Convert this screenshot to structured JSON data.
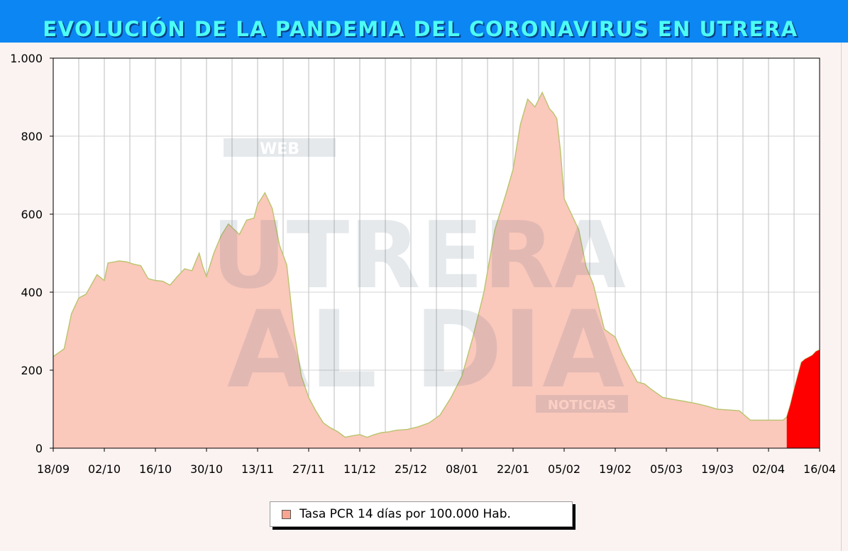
{
  "banner": {
    "title": "EVOLUCIÓN DE LA PANDEMIA DEL CORONAVIRUS EN UTRERA",
    "background": "#0c86f3",
    "text_color": "#4dfcf5"
  },
  "watermark": {
    "lines": [
      "WEB",
      "UTRERA",
      "AL DIA",
      "NOTICIAS"
    ]
  },
  "chart_data": {
    "type": "area",
    "title": "EVOLUCIÓN DE LA PANDEMIA DEL CORONAVIRUS EN UTRERA",
    "xlabel": "",
    "ylabel": "",
    "ylim": [
      0,
      1000
    ],
    "grid": true,
    "legend_position": "bottom",
    "y_ticks": [
      0,
      200,
      400,
      600,
      800,
      1000
    ],
    "y_tick_labels": [
      "0",
      "200",
      "400",
      "600",
      "800",
      "1.000"
    ],
    "x_ticks": [
      "18/09",
      "02/10",
      "16/10",
      "30/10",
      "13/11",
      "27/11",
      "11/12",
      "25/12",
      "08/01",
      "22/01",
      "05/02",
      "19/02",
      "05/03",
      "19/03",
      "02/04",
      "16/04"
    ],
    "x_start": "2020-09-18",
    "x_end": "2021-04-16",
    "colors": {
      "fill": "#fbc8bc",
      "line": "#b9c46c",
      "highlight": "#ff0000"
    },
    "series": [
      {
        "name": "Tasa PCR 14 días por 100.000 Hab.",
        "x": [
          "2020-09-18",
          "2020-09-21",
          "2020-09-23",
          "2020-09-25",
          "2020-09-27",
          "2020-09-30",
          "2020-10-02",
          "2020-10-03",
          "2020-10-05",
          "2020-10-06",
          "2020-10-08",
          "2020-10-10",
          "2020-10-12",
          "2020-10-14",
          "2020-10-16",
          "2020-10-18",
          "2020-10-20",
          "2020-10-22",
          "2020-10-24",
          "2020-10-26",
          "2020-10-28",
          "2020-10-29",
          "2020-10-30",
          "2020-11-01",
          "2020-11-03",
          "2020-11-05",
          "2020-11-08",
          "2020-11-10",
          "2020-11-12",
          "2020-11-13",
          "2020-11-15",
          "2020-11-17",
          "2020-11-19",
          "2020-11-21",
          "2020-11-23",
          "2020-11-25",
          "2020-11-27",
          "2020-11-29",
          "2020-12-01",
          "2020-12-03",
          "2020-12-05",
          "2020-12-07",
          "2020-12-09",
          "2020-12-11",
          "2020-12-13",
          "2020-12-15",
          "2020-12-17",
          "2020-12-19",
          "2020-12-21",
          "2020-12-24",
          "2020-12-27",
          "2020-12-30",
          "2021-01-02",
          "2021-01-05",
          "2021-01-08",
          "2021-01-11",
          "2021-01-14",
          "2021-01-17",
          "2021-01-20",
          "2021-01-22",
          "2021-01-24",
          "2021-01-26",
          "2021-01-28",
          "2021-01-30",
          "2021-02-01",
          "2021-02-02",
          "2021-02-03",
          "2021-02-04",
          "2021-02-05",
          "2021-02-07",
          "2021-02-09",
          "2021-02-11",
          "2021-02-13",
          "2021-02-16",
          "2021-02-19",
          "2021-02-21",
          "2021-02-23",
          "2021-02-25",
          "2021-02-27",
          "2021-03-01",
          "2021-03-04",
          "2021-03-07",
          "2021-03-10",
          "2021-03-13",
          "2021-03-16",
          "2021-03-19",
          "2021-03-22",
          "2021-03-25",
          "2021-03-28",
          "2021-03-31",
          "2021-04-03",
          "2021-04-06",
          "2021-04-07",
          "2021-04-08",
          "2021-04-09",
          "2021-04-10",
          "2021-04-11",
          "2021-04-12",
          "2021-04-13",
          "2021-04-14",
          "2021-04-15",
          "2021-04-16"
        ],
        "values": [
          235,
          255,
          345,
          385,
          395,
          445,
          430,
          475,
          478,
          480,
          478,
          472,
          468,
          435,
          430,
          428,
          418,
          440,
          460,
          455,
          500,
          465,
          440,
          500,
          545,
          575,
          548,
          585,
          590,
          625,
          655,
          615,
          520,
          470,
          300,
          185,
          130,
          95,
          65,
          52,
          42,
          28,
          32,
          35,
          28,
          35,
          40,
          42,
          46,
          48,
          55,
          65,
          85,
          130,
          185,
          285,
          400,
          560,
          650,
          715,
          830,
          895,
          875,
          912,
          870,
          860,
          845,
          760,
          640,
          600,
          560,
          465,
          420,
          305,
          285,
          240,
          205,
          170,
          165,
          150,
          130,
          125,
          120,
          115,
          108,
          100,
          98,
          96,
          72,
          72,
          72,
          72,
          80,
          112,
          150,
          185,
          220,
          228,
          233,
          238,
          248,
          252
        ]
      }
    ],
    "highlight_from": "2021-04-07"
  },
  "legend": {
    "label": "Tasa PCR 14 días por 100.000 Hab."
  }
}
